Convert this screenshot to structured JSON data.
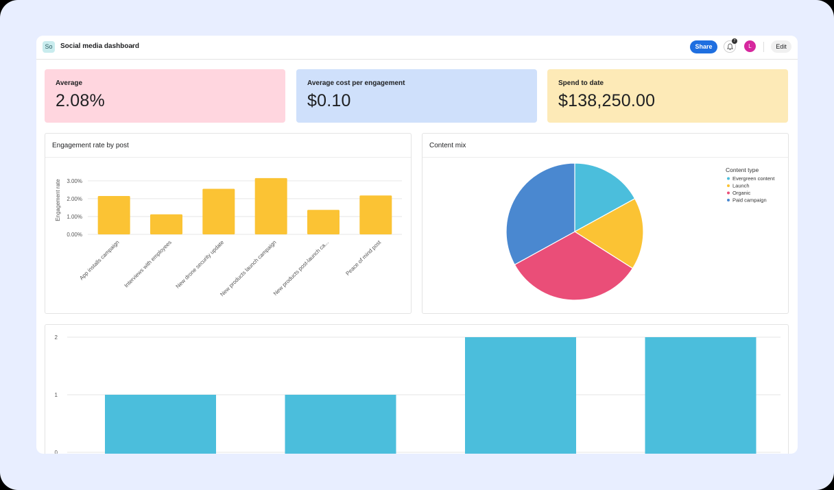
{
  "header": {
    "app_badge": "So",
    "title": "Social media dashboard",
    "share_label": "Share",
    "notification_count": "7",
    "avatar_initial": "L",
    "edit_label": "Edit"
  },
  "kpis": [
    {
      "label": "Average",
      "value": "2.08%",
      "color": "#ffd6df"
    },
    {
      "label": "Average cost per engagement",
      "value": "$0.10",
      "color": "#cfe0fb"
    },
    {
      "label": "Spend to date",
      "value": "$138,250.00",
      "color": "#fdeab7"
    }
  ],
  "colors": {
    "accent": "#1f6fe0",
    "bar_yellow": "#fbc334",
    "bar_blue": "#4bbedc"
  },
  "chart_data": [
    {
      "type": "bar",
      "title": "Engagement rate by post",
      "ylabel": "Engagement rate",
      "xlabel": "",
      "categories": [
        "App installs campaign",
        "Interviews with employees",
        "New drone security update",
        "New products launch campaign",
        "New products post-launch ca...",
        "Peace of mind post"
      ],
      "values": [
        2.15,
        1.12,
        2.55,
        3.15,
        1.37,
        2.18
      ],
      "yticks": [
        "0.00%",
        "1.00%",
        "2.00%",
        "3.00%"
      ],
      "ylim": [
        0,
        3.3
      ],
      "grid": true
    },
    {
      "type": "pie",
      "title": "Content mix",
      "legend_title": "Content type",
      "legend_position": "top-right",
      "slices": [
        {
          "label": "Evergreen content",
          "value": 17,
          "color": "#4bbedc"
        },
        {
          "label": "Launch",
          "value": 17,
          "color": "#fbc334"
        },
        {
          "label": "Organic",
          "value": 33,
          "color": "#ea4e78"
        },
        {
          "label": "Paid campaign",
          "value": 33,
          "color": "#4a88d0"
        }
      ]
    },
    {
      "type": "bar",
      "title": "",
      "xlabel": "",
      "ylabel": "",
      "categories": [
        "",
        "",
        "",
        ""
      ],
      "values": [
        1,
        1,
        2,
        2
      ],
      "yticks": [
        "0",
        "1",
        "2"
      ],
      "ylim": [
        0,
        2
      ],
      "grid": true
    }
  ]
}
